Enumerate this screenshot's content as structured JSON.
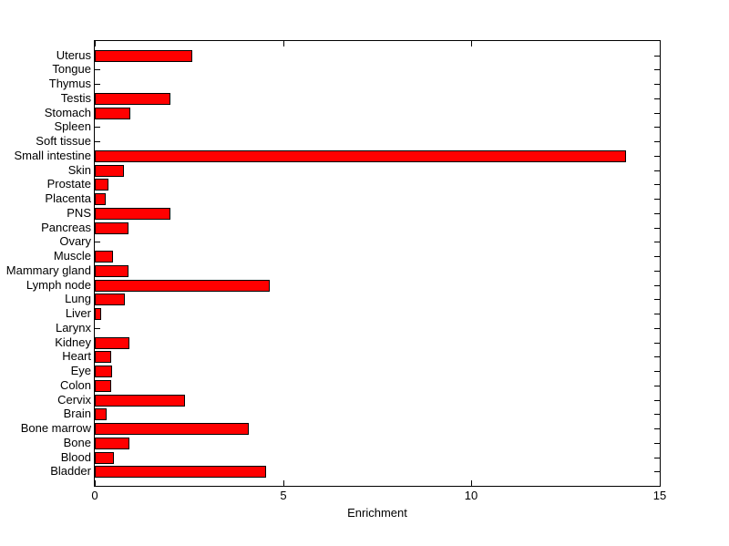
{
  "figure": {
    "background_color": "#ffffff",
    "axis_color": "#000000",
    "text_color": "#000000"
  },
  "chart_data": {
    "type": "bar",
    "orientation": "horizontal",
    "title": "",
    "xlabel": "Enrichment",
    "ylabel": "",
    "xlim": [
      0,
      15
    ],
    "xticks": [
      0,
      5,
      10,
      15
    ],
    "xtick_labels": [
      "0",
      "5",
      "10",
      "15"
    ],
    "grid": false,
    "legend": null,
    "bar_color": "#ff0000",
    "bar_edge_color": "#000000",
    "categories_top_to_bottom": [
      "Uterus",
      "Tongue",
      "Thymus",
      "Testis",
      "Stomach",
      "Spleen",
      "Soft tissue",
      "Small intestine",
      "Skin",
      "Prostate",
      "Placenta",
      "PNS",
      "Pancreas",
      "Ovary",
      "Muscle",
      "Mammary gland",
      "Lymph node",
      "Lung",
      "Liver",
      "Larynx",
      "Kidney",
      "Heart",
      "Eye",
      "Colon",
      "Cervix",
      "Brain",
      "Bone marrow",
      "Bone",
      "Blood",
      "Bladder"
    ],
    "values": [
      2.6,
      0,
      0,
      2.0,
      0.95,
      0,
      0,
      14.1,
      0.78,
      0.37,
      0.3,
      2.0,
      0.9,
      0,
      0.48,
      0.9,
      4.65,
      0.8,
      0.18,
      0,
      0.92,
      0.43,
      0.46,
      0.43,
      2.4,
      0.32,
      4.1,
      0.92,
      0.5,
      4.55
    ]
  }
}
